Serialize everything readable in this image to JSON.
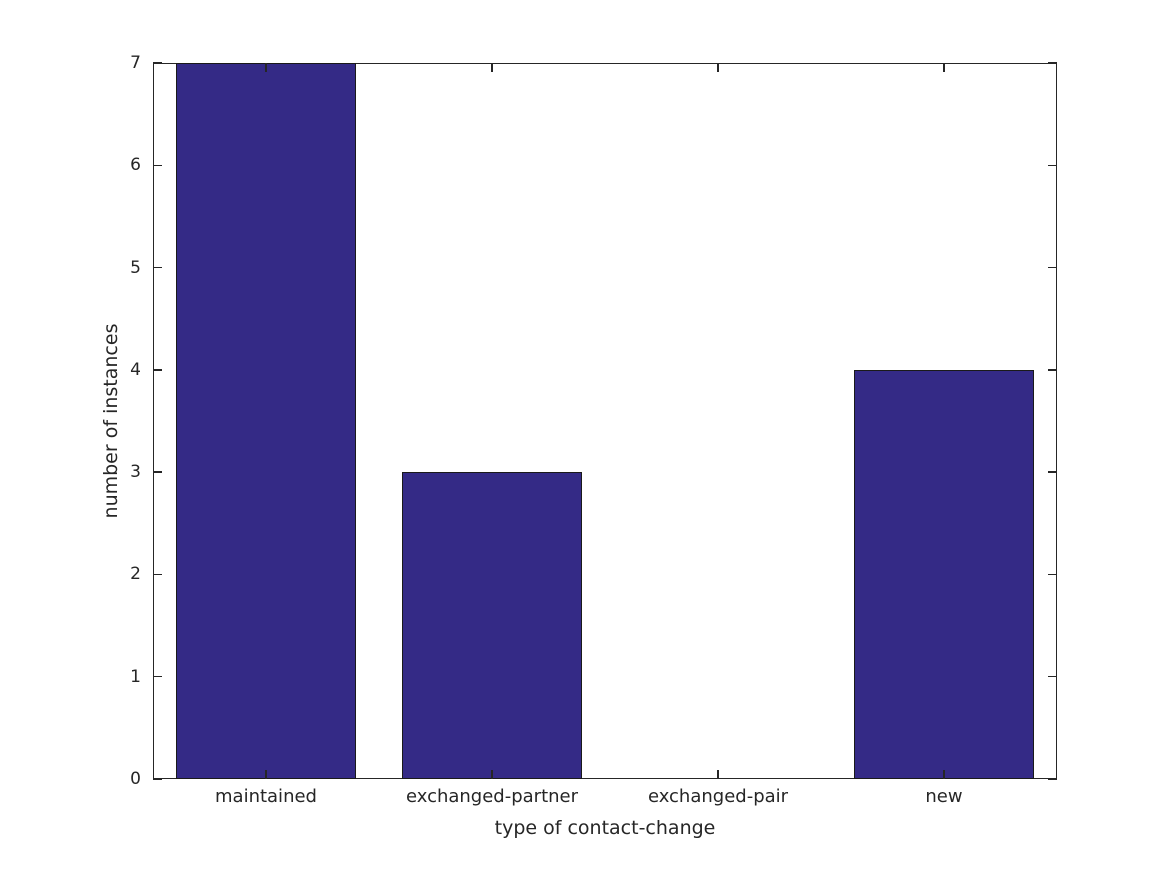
{
  "figure": {
    "background": "#ffffff"
  },
  "chart_data": {
    "type": "bar",
    "categories": [
      "maintained",
      "exchanged-partner",
      "exchanged-pair",
      "new"
    ],
    "values": [
      7,
      3,
      0,
      4
    ],
    "title": "",
    "xlabel": "type of contact-change",
    "ylabel": "number of instances",
    "ylim": [
      0,
      7
    ],
    "yticks": [
      0,
      1,
      2,
      3,
      4,
      5,
      6,
      7
    ],
    "bar_width_fraction": 0.8,
    "grid": false,
    "legend": null,
    "ticks_direction": "in",
    "box_on_all_sides": true,
    "bar_color": "#342a86",
    "bar_edge_color": "#1a1a1a",
    "axis_color": "#262626",
    "text_color": "#262626"
  }
}
